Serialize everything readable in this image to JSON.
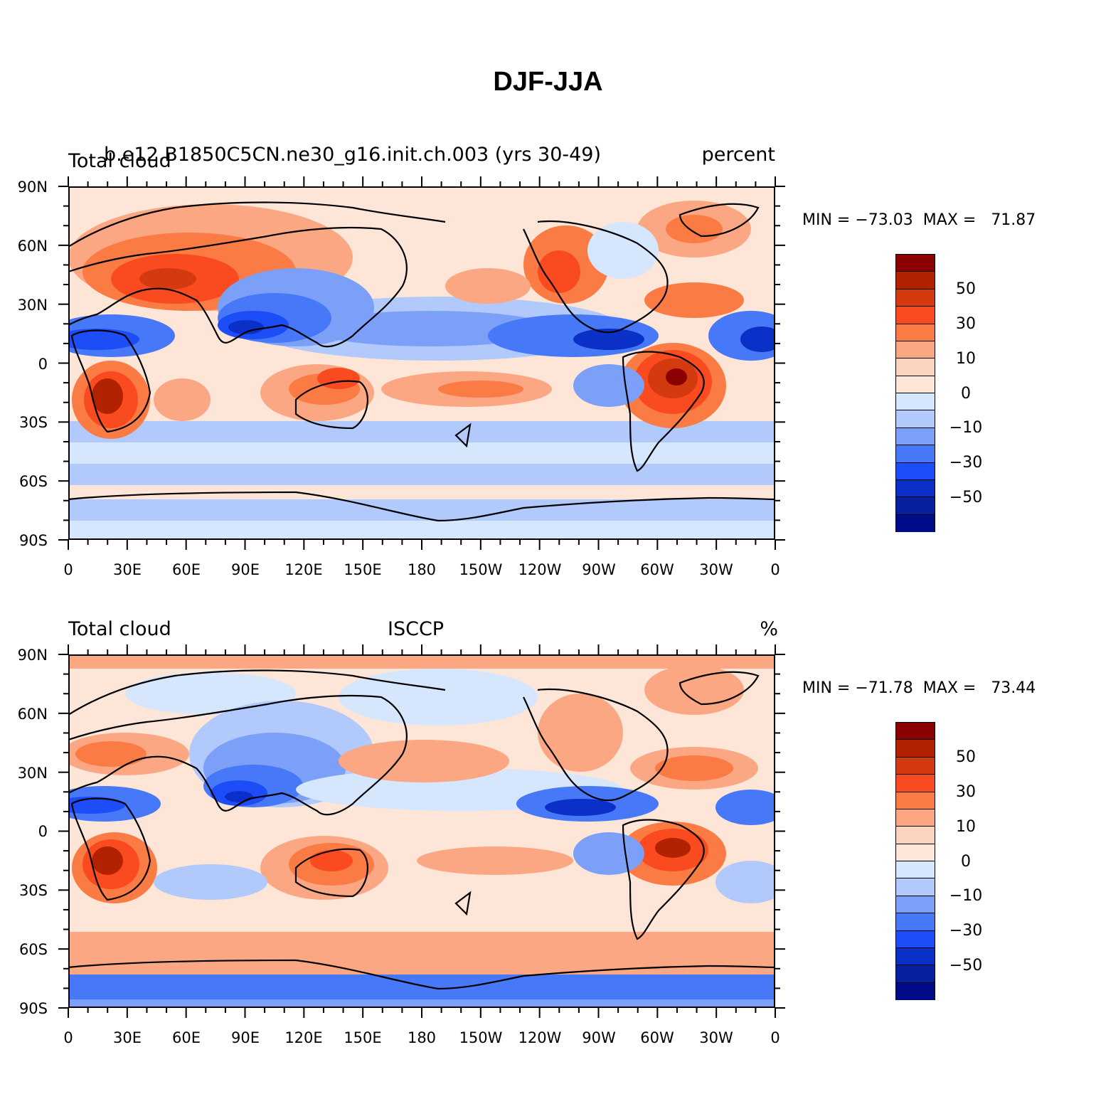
{
  "figure": {
    "title": "DJF-JJA"
  },
  "panels": [
    {
      "id": "model",
      "left_title": "Total cloud",
      "center_title": "b.e12.B1850C5CN.ne30_g16.init.ch.003 (yrs 30-49)",
      "right_title": "percent",
      "min_label": "MIN = ",
      "min_value": "−73.03",
      "max_label": "MAX = ",
      "max_value": "71.87"
    },
    {
      "id": "obs",
      "left_title": "Total cloud",
      "center_title": "ISCCP",
      "right_title": "%",
      "min_label": "MIN = ",
      "min_value": "−71.78",
      "max_label": "MAX = ",
      "max_value": "73.44"
    }
  ],
  "axes": {
    "lat_labels": [
      "90N",
      "60N",
      "30N",
      "0",
      "30S",
      "60S",
      "90S"
    ],
    "lon_labels": [
      "0",
      "30E",
      "60E",
      "90E",
      "120E",
      "150E",
      "180",
      "150W",
      "120W",
      "90W",
      "60W",
      "30W",
      "0"
    ]
  },
  "colorbar": {
    "colors": [
      "#8b0000",
      "#b22200",
      "#d43a10",
      "#fa4a20",
      "#fb7b44",
      "#fca784",
      "#fcd3bc",
      "#fde6d8",
      "#d6e6fd",
      "#b1cafb",
      "#7ca0f8",
      "#4678f7",
      "#1d4df6",
      "#0a30c8",
      "#0620a0",
      "#000b88"
    ],
    "labels": [
      "50",
      "30",
      "10",
      "0",
      "−10",
      "−30",
      "−50"
    ]
  },
  "colors": {
    "strong_warm": "#b22200",
    "warm": "#fa4a20",
    "mid_warm": "#fb7b44",
    "light_warm": "#fca784",
    "pale_warm": "#fde6d8",
    "pale_cool": "#d6e6fd",
    "light_cool": "#b1cafb",
    "mid_cool": "#7ca0f8",
    "cool": "#4678f7",
    "strong_cool": "#0a30c8"
  }
}
